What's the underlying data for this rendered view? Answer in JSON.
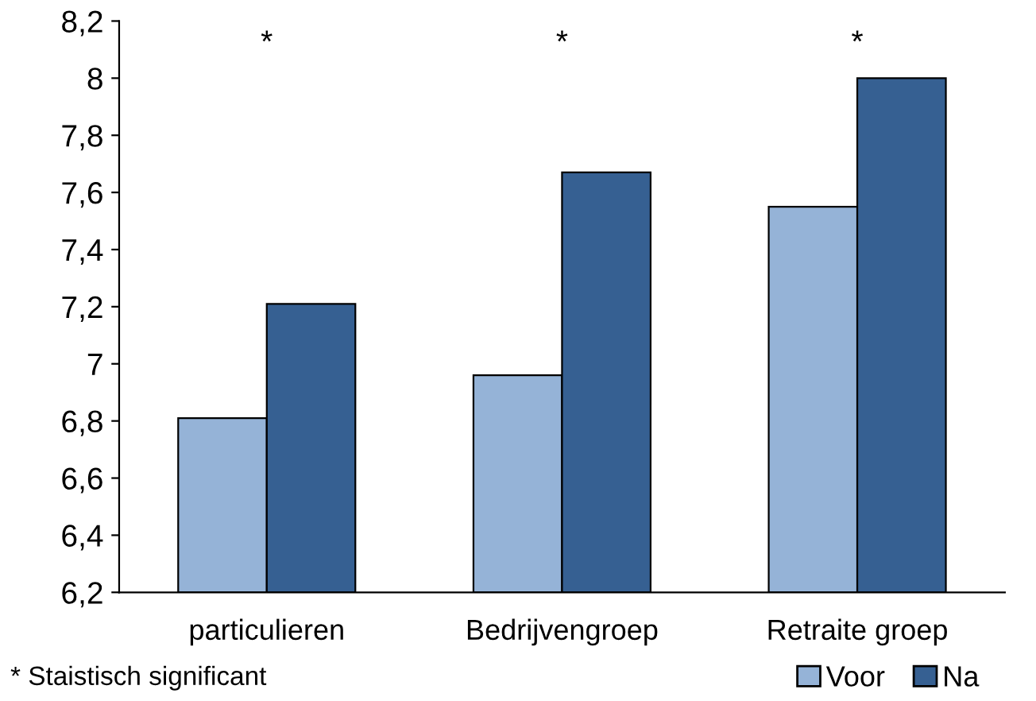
{
  "chart_data": {
    "type": "bar",
    "categories": [
      "particulieren",
      "Bedrijvengroep",
      "Retraite groep"
    ],
    "series": [
      {
        "name": "Voor",
        "color": "#95b3d7",
        "values": [
          6.81,
          6.96,
          7.55
        ]
      },
      {
        "name": "Na",
        "color": "#366092",
        "values": [
          7.21,
          7.67,
          8.0
        ]
      }
    ],
    "ylim": [
      6.2,
      8.2
    ],
    "yticks": [
      {
        "value": 6.2,
        "label": "6,2"
      },
      {
        "value": 6.4,
        "label": "6,4"
      },
      {
        "value": 6.6,
        "label": "6,6"
      },
      {
        "value": 6.8,
        "label": "6,8"
      },
      {
        "value": 7,
        "label": "7"
      },
      {
        "value": 7.2,
        "label": "7,2"
      },
      {
        "value": 7.4,
        "label": "7,4"
      },
      {
        "value": 7.6,
        "label": "7,6"
      },
      {
        "value": 7.8,
        "label": "7,8"
      },
      {
        "value": 8,
        "label": "8"
      },
      {
        "value": 8.2,
        "label": "8,2"
      }
    ],
    "annotations": [
      "*",
      "*",
      "*",
      "* Staistisch significant"
    ],
    "grid": false,
    "legend": "bottom right"
  }
}
